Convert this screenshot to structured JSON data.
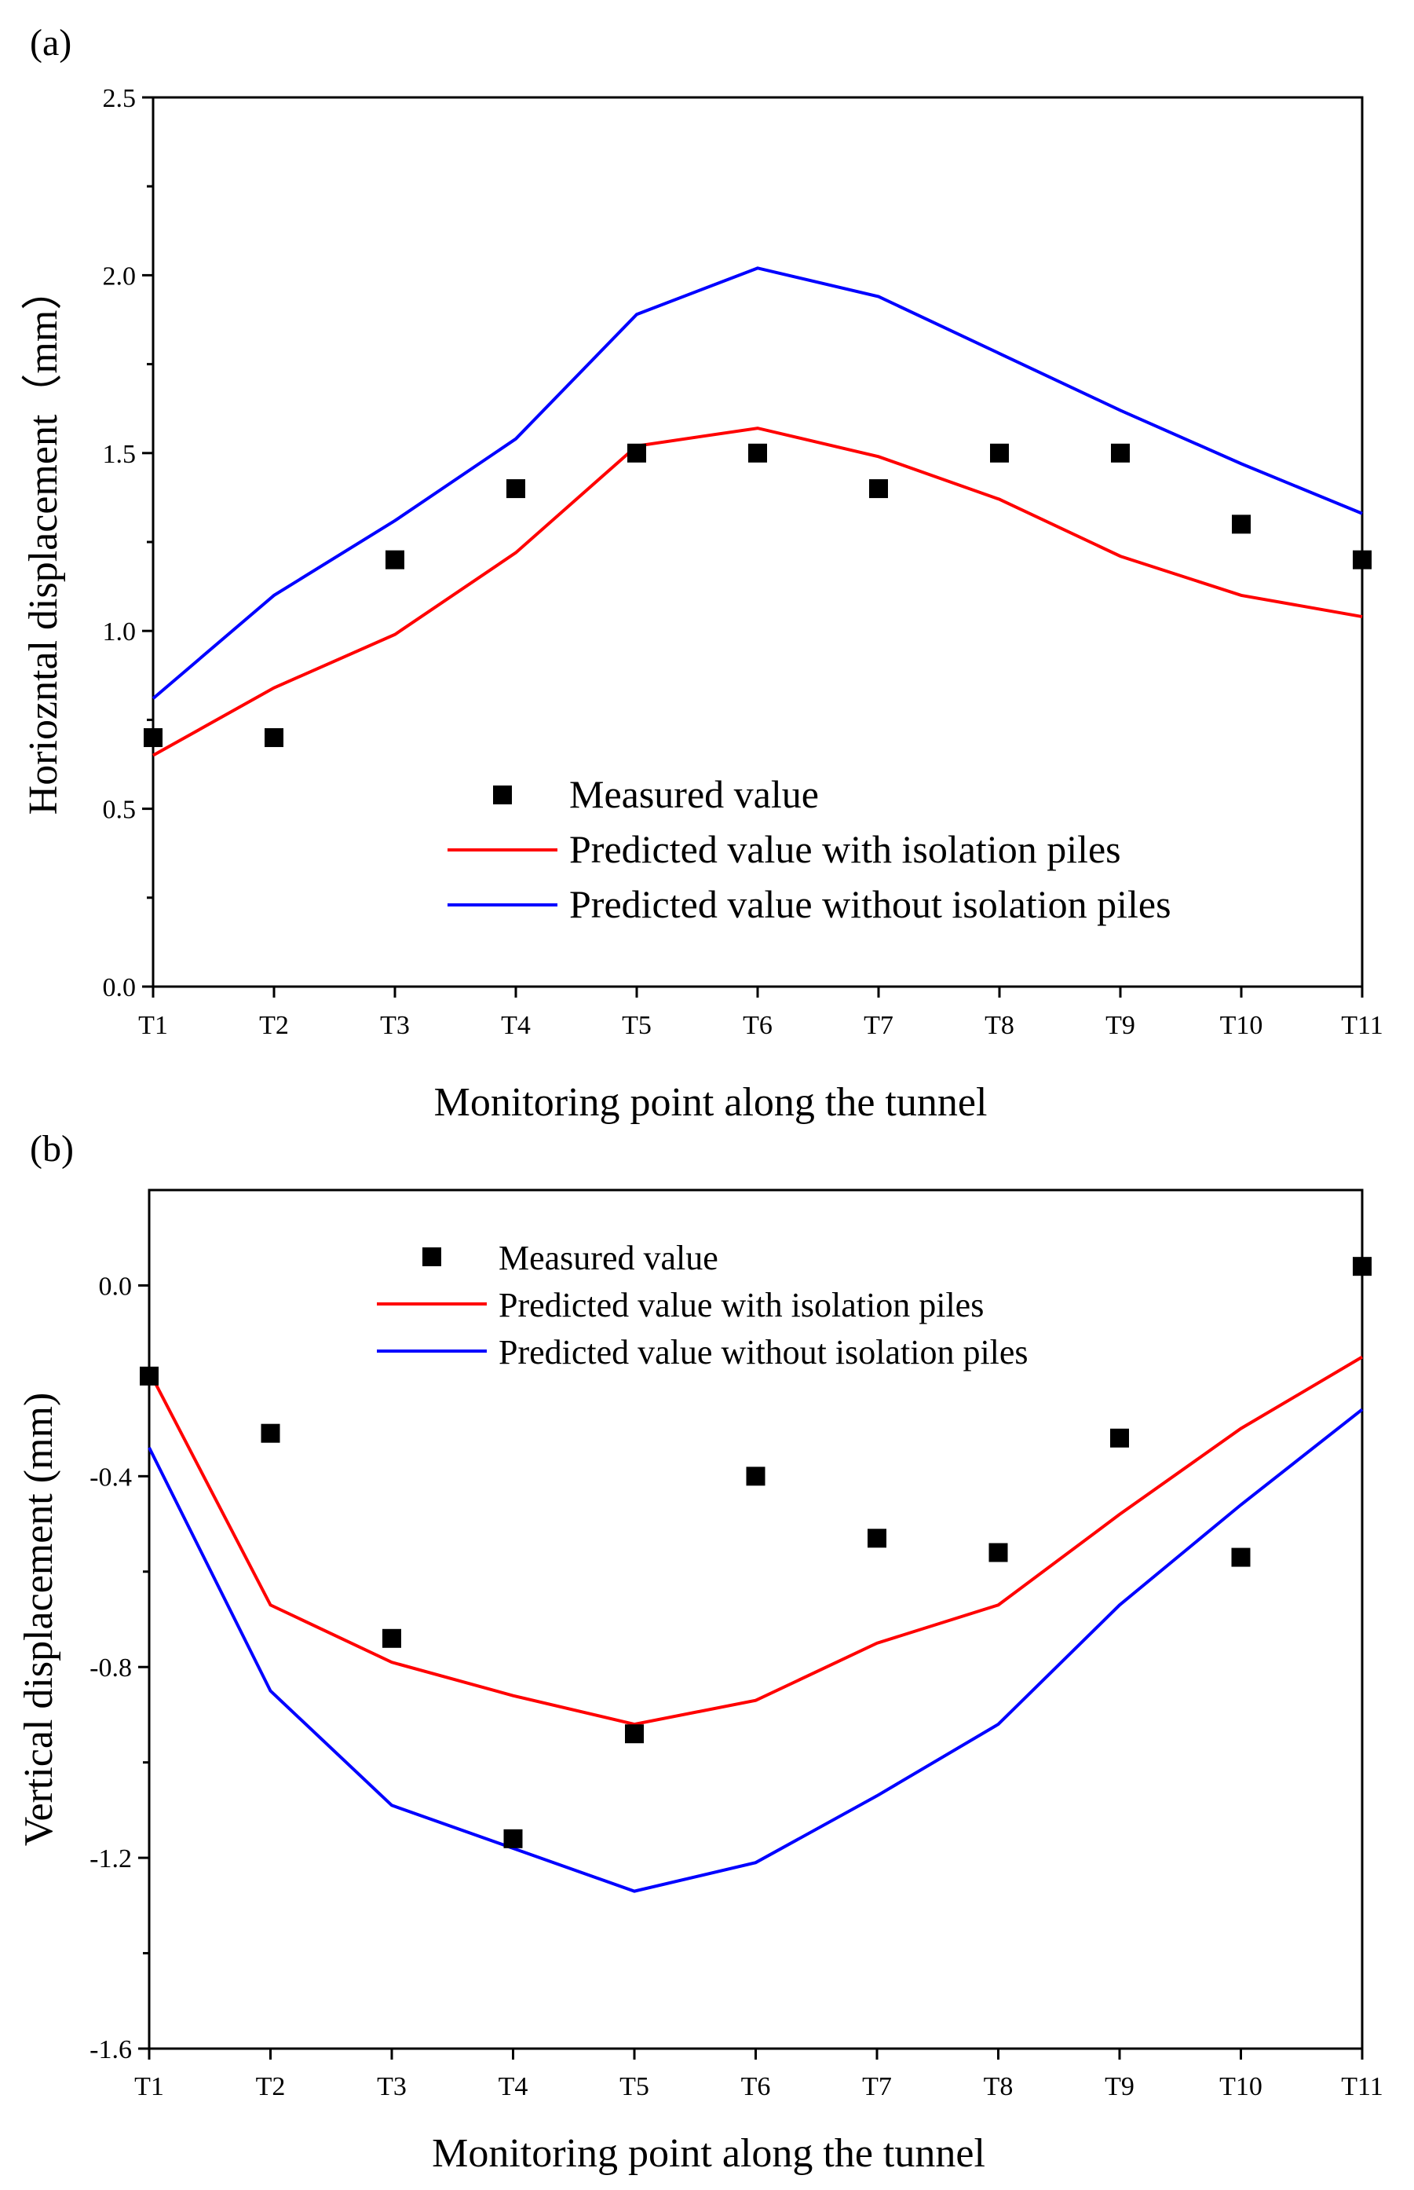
{
  "chart_data": [
    {
      "type": "line",
      "panel_label": "(a)",
      "categories": [
        "T1",
        "T2",
        "T3",
        "T4",
        "T5",
        "T6",
        "T7",
        "T8",
        "T9",
        "T10",
        "T11"
      ],
      "xlabel": "Monitoring point along the tunnel",
      "ylabel": "Horiozntal displacement（mm）",
      "ylim": [
        0.0,
        2.5
      ],
      "yticks": [
        "0.0",
        "0.5",
        "1.0",
        "1.5",
        "2.0",
        "2.5"
      ],
      "legend_position": "bottom-center",
      "series": [
        {
          "name": "Measured value",
          "kind": "scatter",
          "color": "#000000",
          "values": [
            0.7,
            0.7,
            1.2,
            1.4,
            1.5,
            1.5,
            1.4,
            1.5,
            1.5,
            1.3,
            1.2
          ]
        },
        {
          "name": "Predicted value with isolation piles",
          "kind": "line",
          "color": "#ff0000",
          "values": [
            0.65,
            0.84,
            0.99,
            1.22,
            1.52,
            1.57,
            1.49,
            1.37,
            1.21,
            1.1,
            1.04
          ]
        },
        {
          "name": "Predicted value without isolation piles",
          "kind": "line",
          "color": "#0000ff",
          "values": [
            0.81,
            1.1,
            1.31,
            1.54,
            1.89,
            2.02,
            1.94,
            1.78,
            1.62,
            1.47,
            1.33
          ]
        }
      ]
    },
    {
      "type": "line",
      "panel_label": "(b)",
      "categories": [
        "T1",
        "T2",
        "T3",
        "T4",
        "T5",
        "T6",
        "T7",
        "T8",
        "T9",
        "T10",
        "T11"
      ],
      "xlabel": "Monitoring point along the tunnel",
      "ylabel": "Vertical displacement (mm)",
      "ylim": [
        -1.6,
        0.2
      ],
      "yticks": [
        "-1.6",
        "-1.2",
        "-0.8",
        "-0.4",
        "0.0"
      ],
      "legend_position": "top-center",
      "series": [
        {
          "name": "Measured value",
          "kind": "scatter",
          "color": "#000000",
          "values": [
            -0.19,
            -0.31,
            -0.74,
            -1.16,
            -0.94,
            -0.4,
            -0.53,
            -0.56,
            -0.32,
            -0.57,
            0.04
          ]
        },
        {
          "name": "Predicted value with isolation piles",
          "kind": "line",
          "color": "#ff0000",
          "values": [
            -0.18,
            -0.67,
            -0.79,
            -0.86,
            -0.92,
            -0.87,
            -0.75,
            -0.67,
            -0.48,
            -0.3,
            -0.15
          ]
        },
        {
          "name": "Predicted value without isolation piles",
          "kind": "line",
          "color": "#0000ff",
          "values": [
            -0.34,
            -0.85,
            -1.09,
            -1.18,
            -1.27,
            -1.21,
            -1.07,
            -0.92,
            -0.67,
            -0.46,
            -0.26
          ]
        }
      ]
    }
  ]
}
